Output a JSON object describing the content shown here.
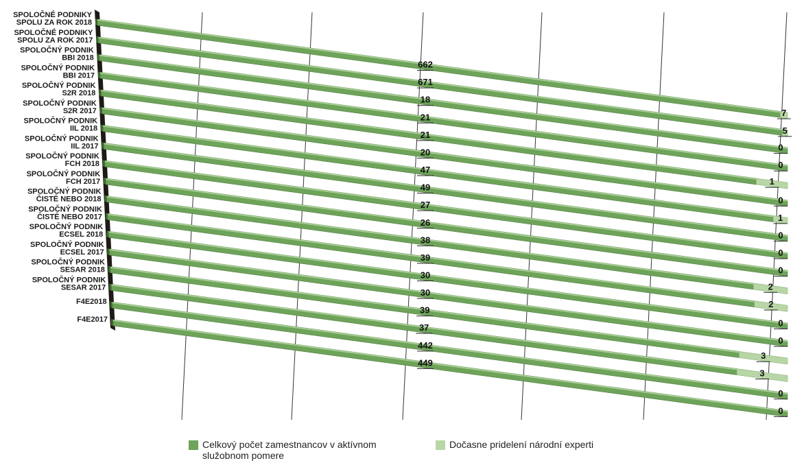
{
  "chart_data": {
    "type": "bar",
    "orientation": "horizontal-3d",
    "stacked": true,
    "grid": true,
    "legend_position": "bottom",
    "colors": {
      "full_time": "#6ea35a",
      "seconded": "#b8d6a6"
    },
    "categories": [
      [
        "SPOLOČNÉ PODNIKY",
        "SPOLU ZA ROK 2018"
      ],
      [
        "SPOLOČNÉ PODNIKY",
        "SPOLU ZA ROK 2017"
      ],
      [
        "SPOLOČNÝ PODNIK",
        "BBI 2018"
      ],
      [
        "SPOLOČNÝ PODNIK",
        "BBI 2017"
      ],
      [
        "SPOLOČNÝ PODNIK",
        "S2R 2018"
      ],
      [
        "SPOLOČNÝ PODNIK",
        "S2R 2017"
      ],
      [
        "SPOLOČNÝ PODNIK",
        "IIL 2018"
      ],
      [
        "SPOLOČNÝ PODNIK",
        "IIL 2017"
      ],
      [
        "SPOLOČNÝ PODNIK",
        "FCH 2018"
      ],
      [
        "SPOLOČNÝ PODNIK",
        "FCH 2017"
      ],
      [
        "SPOLOČNÝ PODNIK",
        "ČISTÉ NEBO 2018"
      ],
      [
        "SPOLOČNÝ PODNIK",
        "ČISTÉ NEBO 2017"
      ],
      [
        "SPOLOČNÝ PODNIK",
        "ECSEL 2018"
      ],
      [
        "SPOLOČNÝ PODNIK",
        "ECSEL 2017"
      ],
      [
        "SPOLOČNÝ PODNIK",
        "SESAR 2018"
      ],
      [
        "SPOLOČNÝ PODNIK",
        "SESAR 2017"
      ],
      [
        "F4E2018"
      ],
      [
        "F4E2017"
      ]
    ],
    "series": [
      {
        "name": "Celkový počet zamestnancov v aktívnom služobnom pomere",
        "values": [
          662,
          671,
          18,
          21,
          21,
          20,
          47,
          49,
          27,
          26,
          38,
          39,
          30,
          30,
          39,
          37,
          442,
          449
        ]
      },
      {
        "name": "Dočasne pridelení národní experti",
        "values": [
          7,
          5,
          0,
          0,
          1,
          0,
          1,
          0,
          0,
          0,
          2,
          2,
          0,
          0,
          3,
          3,
          0,
          0
        ]
      }
    ]
  },
  "legend": {
    "full_time_line1": "Celkový počet zamestnancov v aktívnom",
    "full_time_line2": "služobnom pomere",
    "seconded": "Dočasne pridelení národní experti"
  }
}
